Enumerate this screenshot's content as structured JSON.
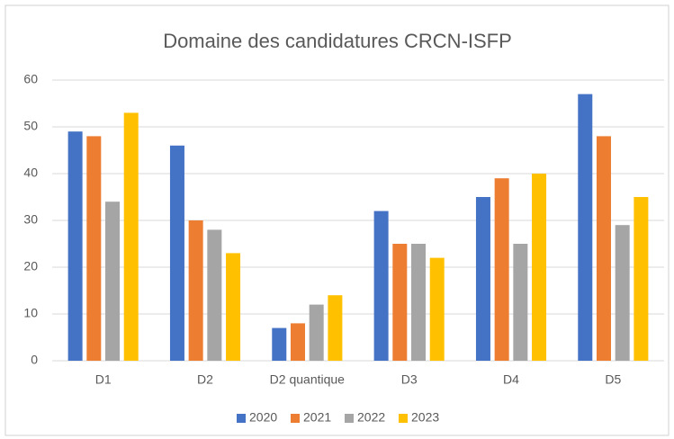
{
  "chart_data": {
    "type": "bar",
    "title": "Domaine des candidatures CRCN-ISFP",
    "categories": [
      "D1",
      "D2",
      "D2 quantique",
      "D3",
      "D4",
      "D5"
    ],
    "series": [
      {
        "name": "2020",
        "color": "#4472c4",
        "values": [
          49,
          46,
          7,
          32,
          35,
          57
        ]
      },
      {
        "name": "2021",
        "color": "#ed7d31",
        "values": [
          48,
          30,
          8,
          25,
          39,
          48
        ]
      },
      {
        "name": "2022",
        "color": "#a5a5a5",
        "values": [
          34,
          28,
          12,
          25,
          25,
          29
        ]
      },
      {
        "name": "2023",
        "color": "#ffc000",
        "values": [
          53,
          23,
          14,
          22,
          40,
          35
        ]
      }
    ],
    "ylim": [
      0,
      60
    ],
    "yticks": [
      0,
      10,
      20,
      30,
      40,
      50,
      60
    ],
    "grid": true,
    "legend": "bottom"
  }
}
